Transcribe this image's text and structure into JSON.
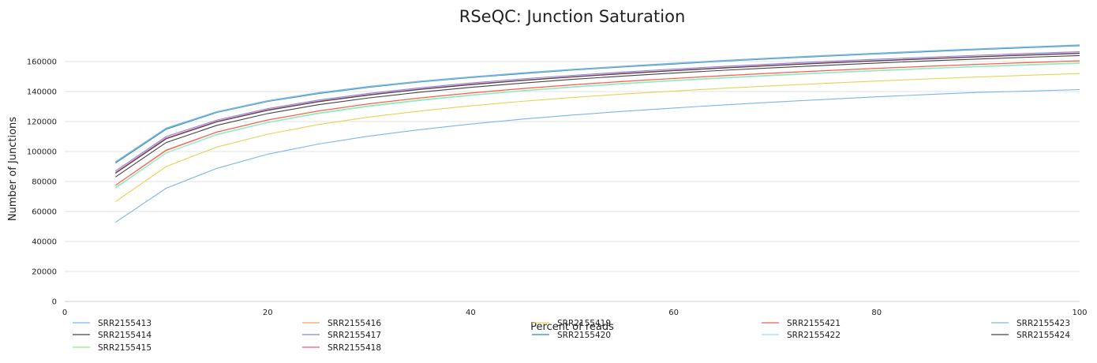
{
  "chart_data": {
    "type": "line",
    "title": "RSeQC: Junction Saturation",
    "xlabel": "Percent of reads",
    "ylabel": "Number of Junctions",
    "xlim": [
      0,
      100
    ],
    "ylim": [
      0,
      180000
    ],
    "x_ticks": [
      "0",
      "20",
      "40",
      "60",
      "80",
      "100"
    ],
    "y_ticks": [
      "0",
      "20000",
      "40000",
      "60000",
      "80000",
      "100000",
      "120000",
      "140000",
      "160000"
    ],
    "grid": true,
    "legend_position": "bottom",
    "x": [
      5,
      10,
      15,
      20,
      25,
      30,
      35,
      40,
      45,
      50,
      55,
      60,
      65,
      70,
      75,
      80,
      85,
      90,
      95,
      100
    ],
    "series": [
      {
        "name": "SRR2155413",
        "color": "#7cb5ec",
        "values": [
          52800,
          75500,
          88800,
          98200,
          105000,
          110300,
          114600,
          118300,
          121500,
          124300,
          126800,
          129000,
          131100,
          133000,
          134800,
          136500,
          138000,
          139400,
          140300,
          141300
        ]
      },
      {
        "name": "SRR2155414",
        "color": "#434348",
        "values": [
          83000,
          106000,
          117500,
          125300,
          131200,
          135800,
          139600,
          142800,
          145600,
          148100,
          150300,
          152300,
          154200,
          155900,
          157500,
          159000,
          160400,
          161700,
          162900,
          164000
        ]
      },
      {
        "name": "SRR2155415",
        "color": "#90ed7d",
        "values": [
          76000,
          99000,
          111500,
          119500,
          125700,
          130500,
          134400,
          137700,
          140600,
          143100,
          145400,
          147400,
          149300,
          151000,
          152600,
          154100,
          155500,
          156800,
          158000,
          159100
        ]
      },
      {
        "name": "SRR2155416",
        "color": "#f7a35c",
        "values": [
          77500,
          100500,
          113000,
          121000,
          127100,
          131900,
          135800,
          139100,
          142000,
          144500,
          146800,
          148800,
          150700,
          152400,
          154000,
          155500,
          156900,
          158200,
          159400,
          160500
        ]
      },
      {
        "name": "SRR2155417",
        "color": "#8085e9",
        "values": [
          87000,
          110000,
          121000,
          128600,
          134300,
          138800,
          142500,
          145700,
          148400,
          150800,
          153000,
          155000,
          156800,
          158500,
          160100,
          161500,
          162900,
          164200,
          165400,
          166500
        ]
      },
      {
        "name": "SRR2155418",
        "color": "#f15c80",
        "values": [
          86000,
          109000,
          120200,
          127800,
          133500,
          138000,
          141700,
          144900,
          147600,
          150000,
          152200,
          154200,
          156000,
          157700,
          159300,
          160700,
          162100,
          163400,
          164600,
          165700
        ]
      },
      {
        "name": "SRR2155419",
        "color": "#e4d354",
        "values": [
          66500,
          90000,
          103000,
          111600,
          118000,
          123000,
          127000,
          130500,
          133400,
          136000,
          138300,
          140300,
          142200,
          143900,
          145500,
          147000,
          148400,
          149700,
          150900,
          152000
        ]
      },
      {
        "name": "SRR2155420",
        "color": "#2b908f",
        "values": [
          92500,
          115000,
          126200,
          133500,
          138800,
          143000,
          146500,
          149400,
          152000,
          154400,
          156500,
          158500,
          160400,
          162100,
          163700,
          165200,
          166700,
          168100,
          169400,
          170700
        ]
      },
      {
        "name": "SRR2155421",
        "color": "#f45b5b",
        "values": [
          77500,
          101000,
          113000,
          121000,
          127000,
          131800,
          135700,
          139000,
          141900,
          144400,
          146700,
          148700,
          150600,
          152300,
          153900,
          155400,
          156800,
          158100,
          159300,
          160400
        ]
      },
      {
        "name": "SRR2155422",
        "color": "#91e8e1",
        "values": [
          75500,
          99000,
          111200,
          119200,
          125300,
          130100,
          134000,
          137400,
          140300,
          142800,
          145100,
          147100,
          149000,
          150700,
          152300,
          153800,
          155200,
          156500,
          157700,
          158800
        ]
      },
      {
        "name": "SRR2155423",
        "color": "#7cb5ec",
        "values": [
          93000,
          115500,
          126500,
          133800,
          139100,
          143300,
          146800,
          149700,
          152300,
          154700,
          156800,
          158800,
          160700,
          162400,
          164000,
          165500,
          167000,
          168400,
          169700,
          171000
        ]
      },
      {
        "name": "SRR2155424",
        "color": "#434348",
        "values": [
          85500,
          108500,
          119800,
          127500,
          133200,
          137700,
          141400,
          144600,
          147300,
          149700,
          151900,
          153900,
          155700,
          157400,
          159000,
          160400,
          161800,
          163100,
          164300,
          165400
        ]
      }
    ]
  }
}
